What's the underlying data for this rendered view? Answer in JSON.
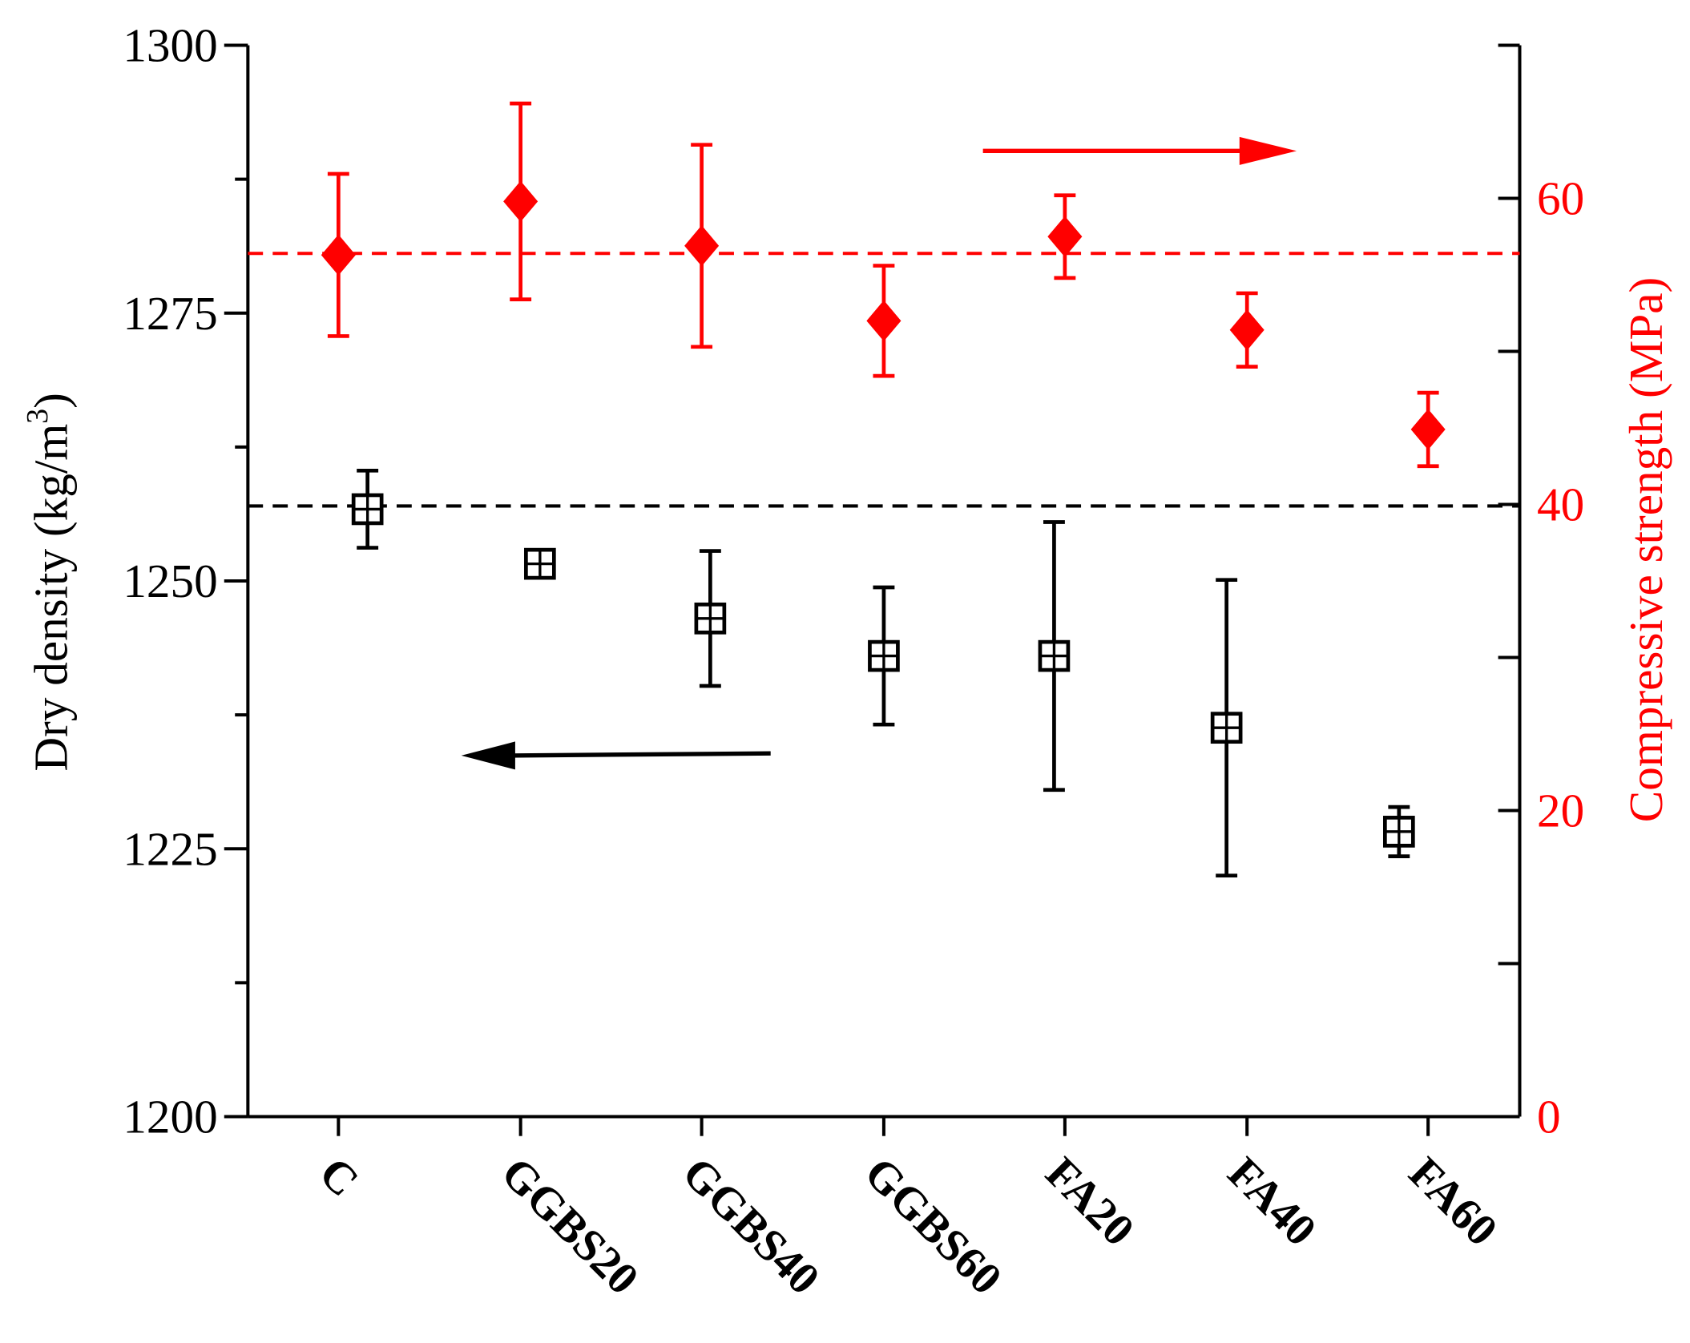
{
  "chart_data": {
    "type": "scatter",
    "categories": [
      "C",
      "GGBS20",
      "GGBS40",
      "GGBS60",
      "FA20",
      "FA40",
      "FA60"
    ],
    "left_axis": {
      "label": "Dry density (kg/m",
      "label_sup": "3",
      "label_end": ")",
      "ylim": [
        1200,
        1300
      ],
      "ticks": [
        1200,
        1225,
        1250,
        1275,
        1300
      ],
      "tick_labels": [
        "1200",
        "1225",
        "1250",
        "1275",
        "1300"
      ],
      "color": "#000000"
    },
    "right_axis": {
      "label": "Compressive strength (MPa)",
      "ylim": [
        0,
        70
      ],
      "ticks": [
        0,
        20,
        40,
        60
      ],
      "tick_labels": [
        "0",
        "20",
        "40",
        "60"
      ],
      "color": "#ff0000"
    },
    "series": [
      {
        "name": "Dry density",
        "axis": "left",
        "marker": "open-square",
        "color": "#000000",
        "values": [
          1256.7,
          1251.6,
          1246.5,
          1243.0,
          1243.0,
          1236.3,
          1226.6
        ],
        "errors": [
          3.6,
          0.5,
          6.3,
          6.4,
          12.5,
          13.8,
          2.3
        ],
        "reference_line": 1257.0
      },
      {
        "name": "Compressive strength",
        "axis": "right",
        "marker": "diamond",
        "color": "#ff0000",
        "values": [
          56.3,
          59.8,
          56.9,
          52.0,
          57.5,
          51.4,
          44.9
        ],
        "errors": [
          5.3,
          6.4,
          6.6,
          3.6,
          2.7,
          2.4,
          2.4
        ],
        "reference_line": 56.4
      }
    ],
    "annotations": [
      "red arrow pointing right (compressive strength axis)",
      "black arrow pointing left (dry density axis)"
    ],
    "grid": false
  }
}
